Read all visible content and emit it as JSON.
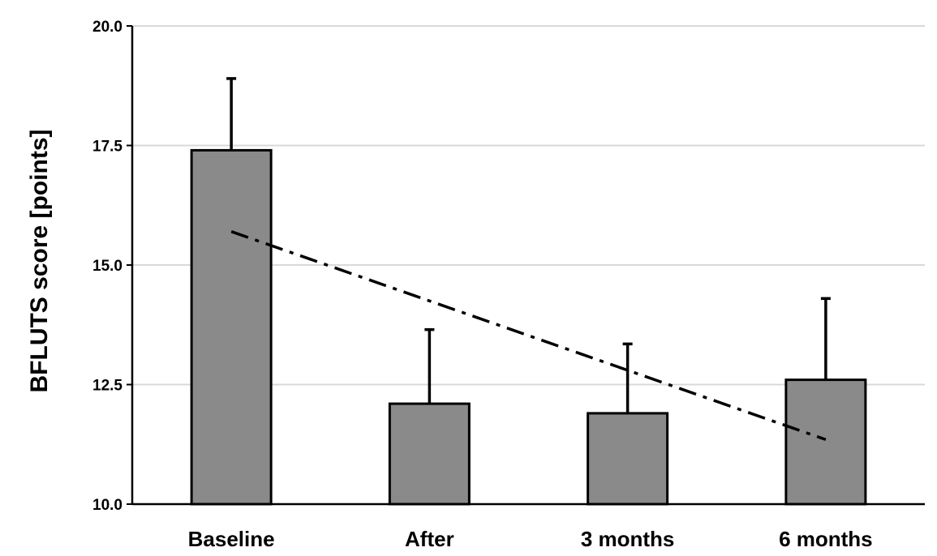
{
  "chart_data": {
    "type": "bar",
    "title": "",
    "xlabel": "",
    "ylabel": "BFLUTS score [points]",
    "ylim": [
      10.0,
      20.0
    ],
    "yticks": [
      "10.0",
      "12.5",
      "15.0",
      "17.5",
      "20.0"
    ],
    "grid": "horizontal",
    "bar_color": "#8a8a8a",
    "categories": [
      "Baseline",
      "After",
      "3 months",
      "6 months"
    ],
    "values": [
      17.4,
      12.1,
      11.9,
      12.6
    ],
    "error_upper": [
      18.9,
      13.65,
      13.35,
      14.3
    ],
    "trendline": {
      "style": "dash-dot",
      "start": {
        "x": 0,
        "y": 15.7
      },
      "end": {
        "x": 3,
        "y": 11.35
      }
    }
  }
}
